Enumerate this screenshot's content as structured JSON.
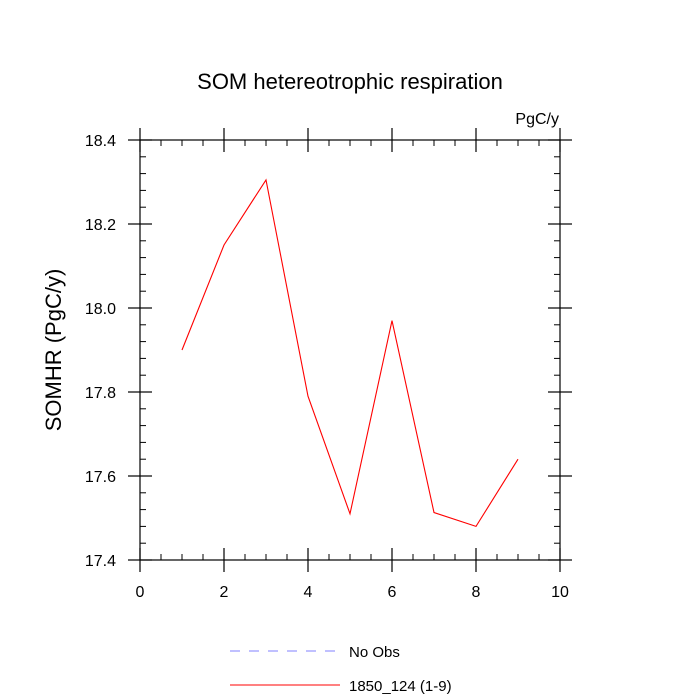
{
  "chart_data": {
    "type": "line",
    "title": "SOM hetereotrophic respiration",
    "units": "PgC/y",
    "xlabel": "",
    "ylabel": "SOMHR  (PgC/y)",
    "xlim": [
      0,
      10
    ],
    "ylim": [
      17.4,
      18.4
    ],
    "x_ticks": [
      0,
      2,
      4,
      6,
      8,
      10
    ],
    "x_tick_labels": [
      "0",
      "2",
      "4",
      "6",
      "8",
      "10"
    ],
    "y_ticks": [
      17.4,
      17.6,
      17.8,
      18.0,
      18.2,
      18.4
    ],
    "y_tick_labels": [
      "17.4",
      "17.6",
      "17.8",
      "18.0",
      "18.2",
      "18.4"
    ],
    "grid": false,
    "legend_position": "bottom",
    "series": [
      {
        "name": "No Obs",
        "color": "#8080ff",
        "dashed": true,
        "x": [],
        "values": []
      },
      {
        "name": "1850_124 (1-9)",
        "color": "#ff0000",
        "dashed": false,
        "x": [
          1,
          2,
          3,
          4,
          5,
          6,
          7,
          8,
          9
        ],
        "values": [
          17.9,
          18.15,
          18.305,
          17.79,
          17.51,
          17.97,
          17.513,
          17.48,
          17.64
        ]
      }
    ]
  }
}
